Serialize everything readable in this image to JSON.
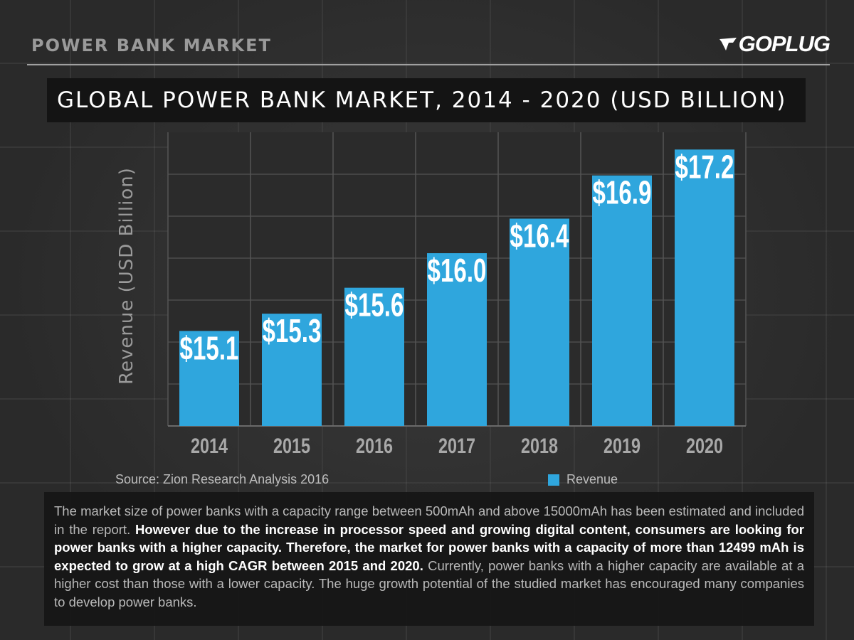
{
  "header": {
    "title": "POWER BANK MARKET",
    "logo_text": "GOPLUG"
  },
  "colors": {
    "bar": "#2fa6dd",
    "background": "#2a2a2a",
    "title_box": "#141414"
  },
  "chart_data": {
    "type": "bar",
    "title": "GLOBAL POWER BANK MARKET, 2014 - 2020 (USD BILLION)",
    "ylabel": "Revenue (USD Billion)",
    "xlabel": "",
    "categories": [
      "2014",
      "2015",
      "2016",
      "2017",
      "2018",
      "2019",
      "2020"
    ],
    "series": [
      {
        "name": "Revenue",
        "values": [
          15.1,
          15.3,
          15.6,
          16.0,
          16.4,
          16.9,
          17.2
        ]
      }
    ],
    "data_labels": [
      "$15.1",
      "$15.3",
      "$15.6",
      "$16.0",
      "$16.4",
      "$16.9",
      "$17.2"
    ],
    "ylim": [
      14.0,
      17.4
    ],
    "grid": true,
    "legend": "bottom-right"
  },
  "source": "Source: Zion Research Analysis 2016",
  "legend": {
    "label": "Revenue"
  },
  "description": {
    "part1": "The market size of power banks with a capacity range between 500mAh and above 15000mAh has been estimated and included in the report. ",
    "part2": "However due to the increase in processor speed and growing digital content, consumers are looking for power banks with a higher capacity. Therefore, the market for power banks with a capacity of more than 12499 mAh is expected to grow at a high CAGR between 2015 and 2020.",
    "part3": " Currently, power banks with a higher capacity are available at a higher cost than those with a lower capacity. The huge growth potential of the studied market has encouraged many companies to develop power banks."
  }
}
